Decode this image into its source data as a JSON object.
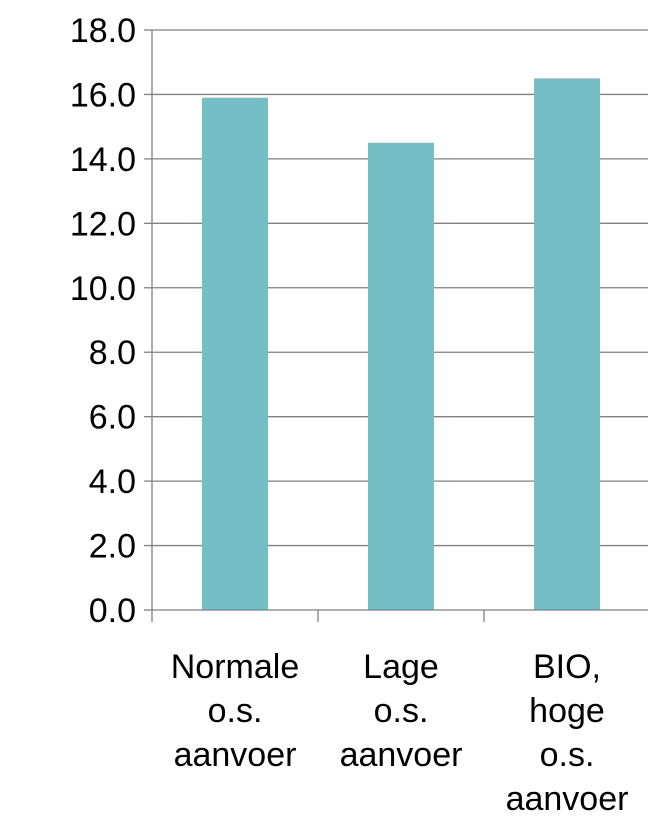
{
  "chart_data": {
    "type": "bar",
    "categories": [
      [
        "Normale",
        "o.s.",
        "aanvoer"
      ],
      [
        "Lage",
        "o.s.",
        "aanvoer"
      ],
      [
        "BIO,",
        "hoge",
        "o.s.",
        "aanvoer"
      ]
    ],
    "values": [
      15.9,
      14.5,
      16.5
    ],
    "ylim": [
      0,
      18
    ],
    "yticks": [
      "0.0",
      "2.0",
      "4.0",
      "6.0",
      "8.0",
      "10.0",
      "12.0",
      "14.0",
      "16.0",
      "18.0"
    ],
    "title": "",
    "xlabel": "",
    "ylabel": "",
    "grid": true,
    "colors": {
      "bar": "#74BFC5",
      "grid": "#808080",
      "axis": "#808080",
      "text": "#000000"
    }
  }
}
